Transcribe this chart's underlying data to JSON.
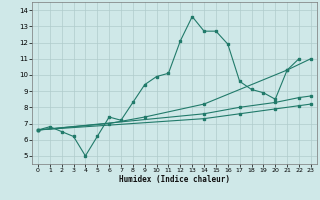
{
  "xlabel": "Humidex (Indice chaleur)",
  "xlim": [
    -0.5,
    23.5
  ],
  "ylim": [
    4.5,
    14.5
  ],
  "xticks": [
    0,
    1,
    2,
    3,
    4,
    5,
    6,
    7,
    8,
    9,
    10,
    11,
    12,
    13,
    14,
    15,
    16,
    17,
    18,
    19,
    20,
    21,
    22,
    23
  ],
  "yticks": [
    5,
    6,
    7,
    8,
    9,
    10,
    11,
    12,
    13,
    14
  ],
  "bg_color": "#cfe8e8",
  "line_color": "#217a6a",
  "grid_color": "#b0cccc",
  "line_main": {
    "x": [
      0,
      1,
      2,
      3,
      4,
      5,
      6,
      7,
      8,
      9,
      10,
      11,
      12,
      13,
      14,
      15,
      16,
      17,
      18,
      19,
      20,
      21,
      22
    ],
    "y": [
      6.6,
      6.8,
      6.5,
      6.2,
      5.0,
      6.2,
      7.4,
      7.2,
      8.3,
      9.4,
      9.9,
      10.1,
      12.1,
      13.6,
      12.7,
      12.7,
      11.9,
      9.6,
      9.1,
      8.9,
      8.5,
      10.3,
      11.0
    ]
  },
  "line_straight1": {
    "x": [
      0,
      6,
      9,
      14,
      21,
      23
    ],
    "y": [
      6.6,
      7.0,
      7.4,
      8.2,
      10.3,
      11.0
    ]
  },
  "line_straight2": {
    "x": [
      0,
      14,
      17,
      20,
      22,
      23
    ],
    "y": [
      6.6,
      7.6,
      8.0,
      8.3,
      8.6,
      8.7
    ]
  },
  "line_straight3": {
    "x": [
      0,
      14,
      17,
      20,
      22,
      23
    ],
    "y": [
      6.6,
      7.3,
      7.6,
      7.9,
      8.1,
      8.2
    ]
  }
}
